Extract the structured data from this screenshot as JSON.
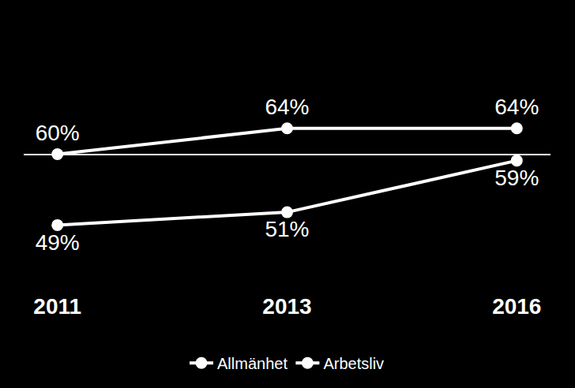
{
  "chart_data": {
    "type": "line",
    "categories": [
      "2011",
      "2013",
      "2016"
    ],
    "series": [
      {
        "name": "Allmänhet",
        "color": "#ffffff",
        "values": [
          60,
          64,
          64
        ],
        "value_labels": [
          "60%",
          "64%",
          "64%"
        ]
      },
      {
        "name": "Arbetsliv",
        "color": "#ffffff",
        "values": [
          49,
          51,
          59
        ],
        "value_labels": [
          "49%",
          "51%",
          "59%"
        ]
      }
    ],
    "ylim": [
      40,
      80
    ],
    "yticks": [
      40,
      60,
      80
    ],
    "grid": true,
    "legend": "bottom",
    "data_labels": true,
    "tick_labels": "x",
    "marker": "circle"
  }
}
